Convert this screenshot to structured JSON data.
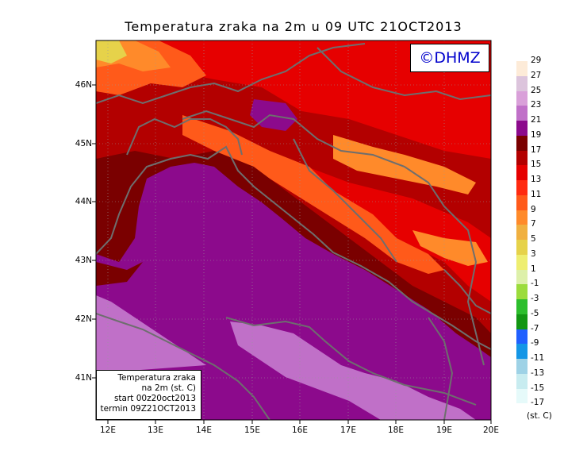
{
  "title": "Temperatura zraka na 2m u 09 UTC 21OCT2013",
  "copyright": "©DHMZ",
  "info_box": {
    "line1": "Temperatura zraka",
    "line2": "na 2m (st. C)",
    "line3": "start 00z20oct2013",
    "line4": "termin 09Z21OCT2013"
  },
  "lat_labels": [
    "46N",
    "45N",
    "44N",
    "43N",
    "42N",
    "41N"
  ],
  "lon_labels": [
    "12E",
    "13E",
    "14E",
    "15E",
    "16E",
    "17E",
    "18E",
    "19E",
    "20E"
  ],
  "legend": {
    "unit": "(st. C)",
    "labels": [
      "29",
      "27",
      "25",
      "23",
      "21",
      "19",
      "17",
      "15",
      "13",
      "11",
      "9",
      "7",
      "5",
      "3",
      "1",
      "-1",
      "-3",
      "-5",
      "-7",
      "-9",
      "-11",
      "-13",
      "-15",
      "-17"
    ],
    "colors": [
      "#fdebd8",
      "#dcc4dc",
      "#d9a0d9",
      "#c070c8",
      "#8c0a8c",
      "#7a0000",
      "#b30000",
      "#e60000",
      "#ff2a10",
      "#ff5a1a",
      "#ff8a2a",
      "#f0b040",
      "#e6d24a",
      "#eeee70",
      "#ddf0aa",
      "#9bdc3c",
      "#2cbe2c",
      "#129612",
      "#2060ff",
      "#1496e6",
      "#9ed2e6",
      "#c8ecf0",
      "#e6fafa"
    ]
  },
  "map": {
    "colors": {
      "sea": "#8c0a8c",
      "sea_light": "#c070c8",
      "temp_21": "#8c0a8c",
      "temp_19": "#7a0000",
      "temp_17": "#b30000",
      "temp_15": "#e60000",
      "temp_13": "#ff2a10",
      "temp_11": "#ff5a1a",
      "temp_9": "#ff8a2a",
      "temp_7": "#f0b040",
      "temp_5": "#e6d24a",
      "coast": "#6e6e6e"
    }
  }
}
